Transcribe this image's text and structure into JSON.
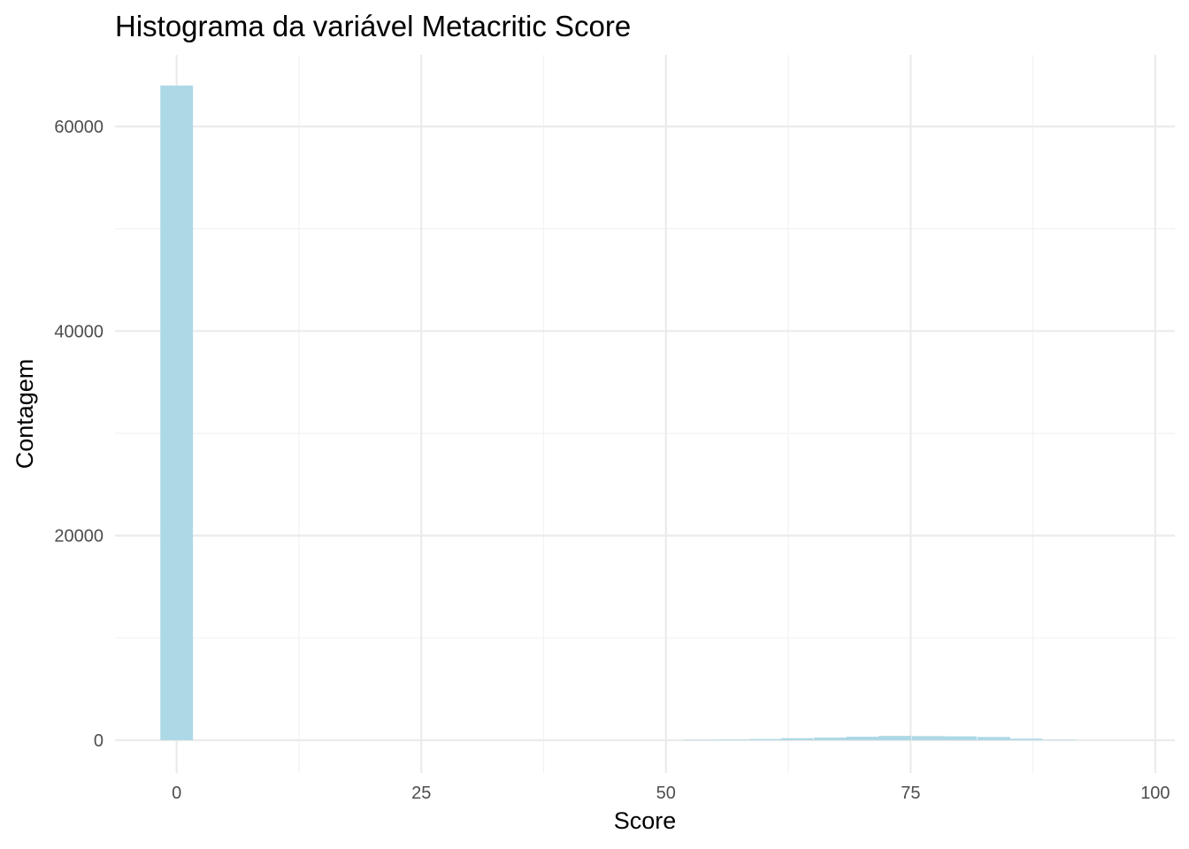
{
  "chart_data": {
    "type": "bar",
    "subtype": "histogram",
    "title": "Histograma da variável Metacritic Score",
    "xlabel": "Score",
    "ylabel": "Contagem",
    "xlim": [
      -6.3,
      102
    ],
    "ylim": [
      -3200,
      67000
    ],
    "x_ticks": [
      0,
      25,
      50,
      75,
      100
    ],
    "x_tick_labels": [
      "0",
      "25",
      "50",
      "75",
      "100"
    ],
    "y_ticks": [
      0,
      20000,
      40000,
      60000
    ],
    "y_tick_labels": [
      "0",
      "20000",
      "40000",
      "60000"
    ],
    "bin_width": 3.33,
    "bins": [
      {
        "center": 0.0,
        "count": 64000
      },
      {
        "center": 53.4,
        "count": 30
      },
      {
        "center": 56.7,
        "count": 60
      },
      {
        "center": 60.1,
        "count": 110
      },
      {
        "center": 63.4,
        "count": 200
      },
      {
        "center": 66.8,
        "count": 260
      },
      {
        "center": 70.1,
        "count": 340
      },
      {
        "center": 73.4,
        "count": 420
      },
      {
        "center": 76.8,
        "count": 400
      },
      {
        "center": 80.1,
        "count": 380
      },
      {
        "center": 83.5,
        "count": 320
      },
      {
        "center": 86.8,
        "count": 150
      },
      {
        "center": 90.2,
        "count": 40
      }
    ],
    "bar_color": "#add8e6",
    "grid": true,
    "legend": "none"
  }
}
